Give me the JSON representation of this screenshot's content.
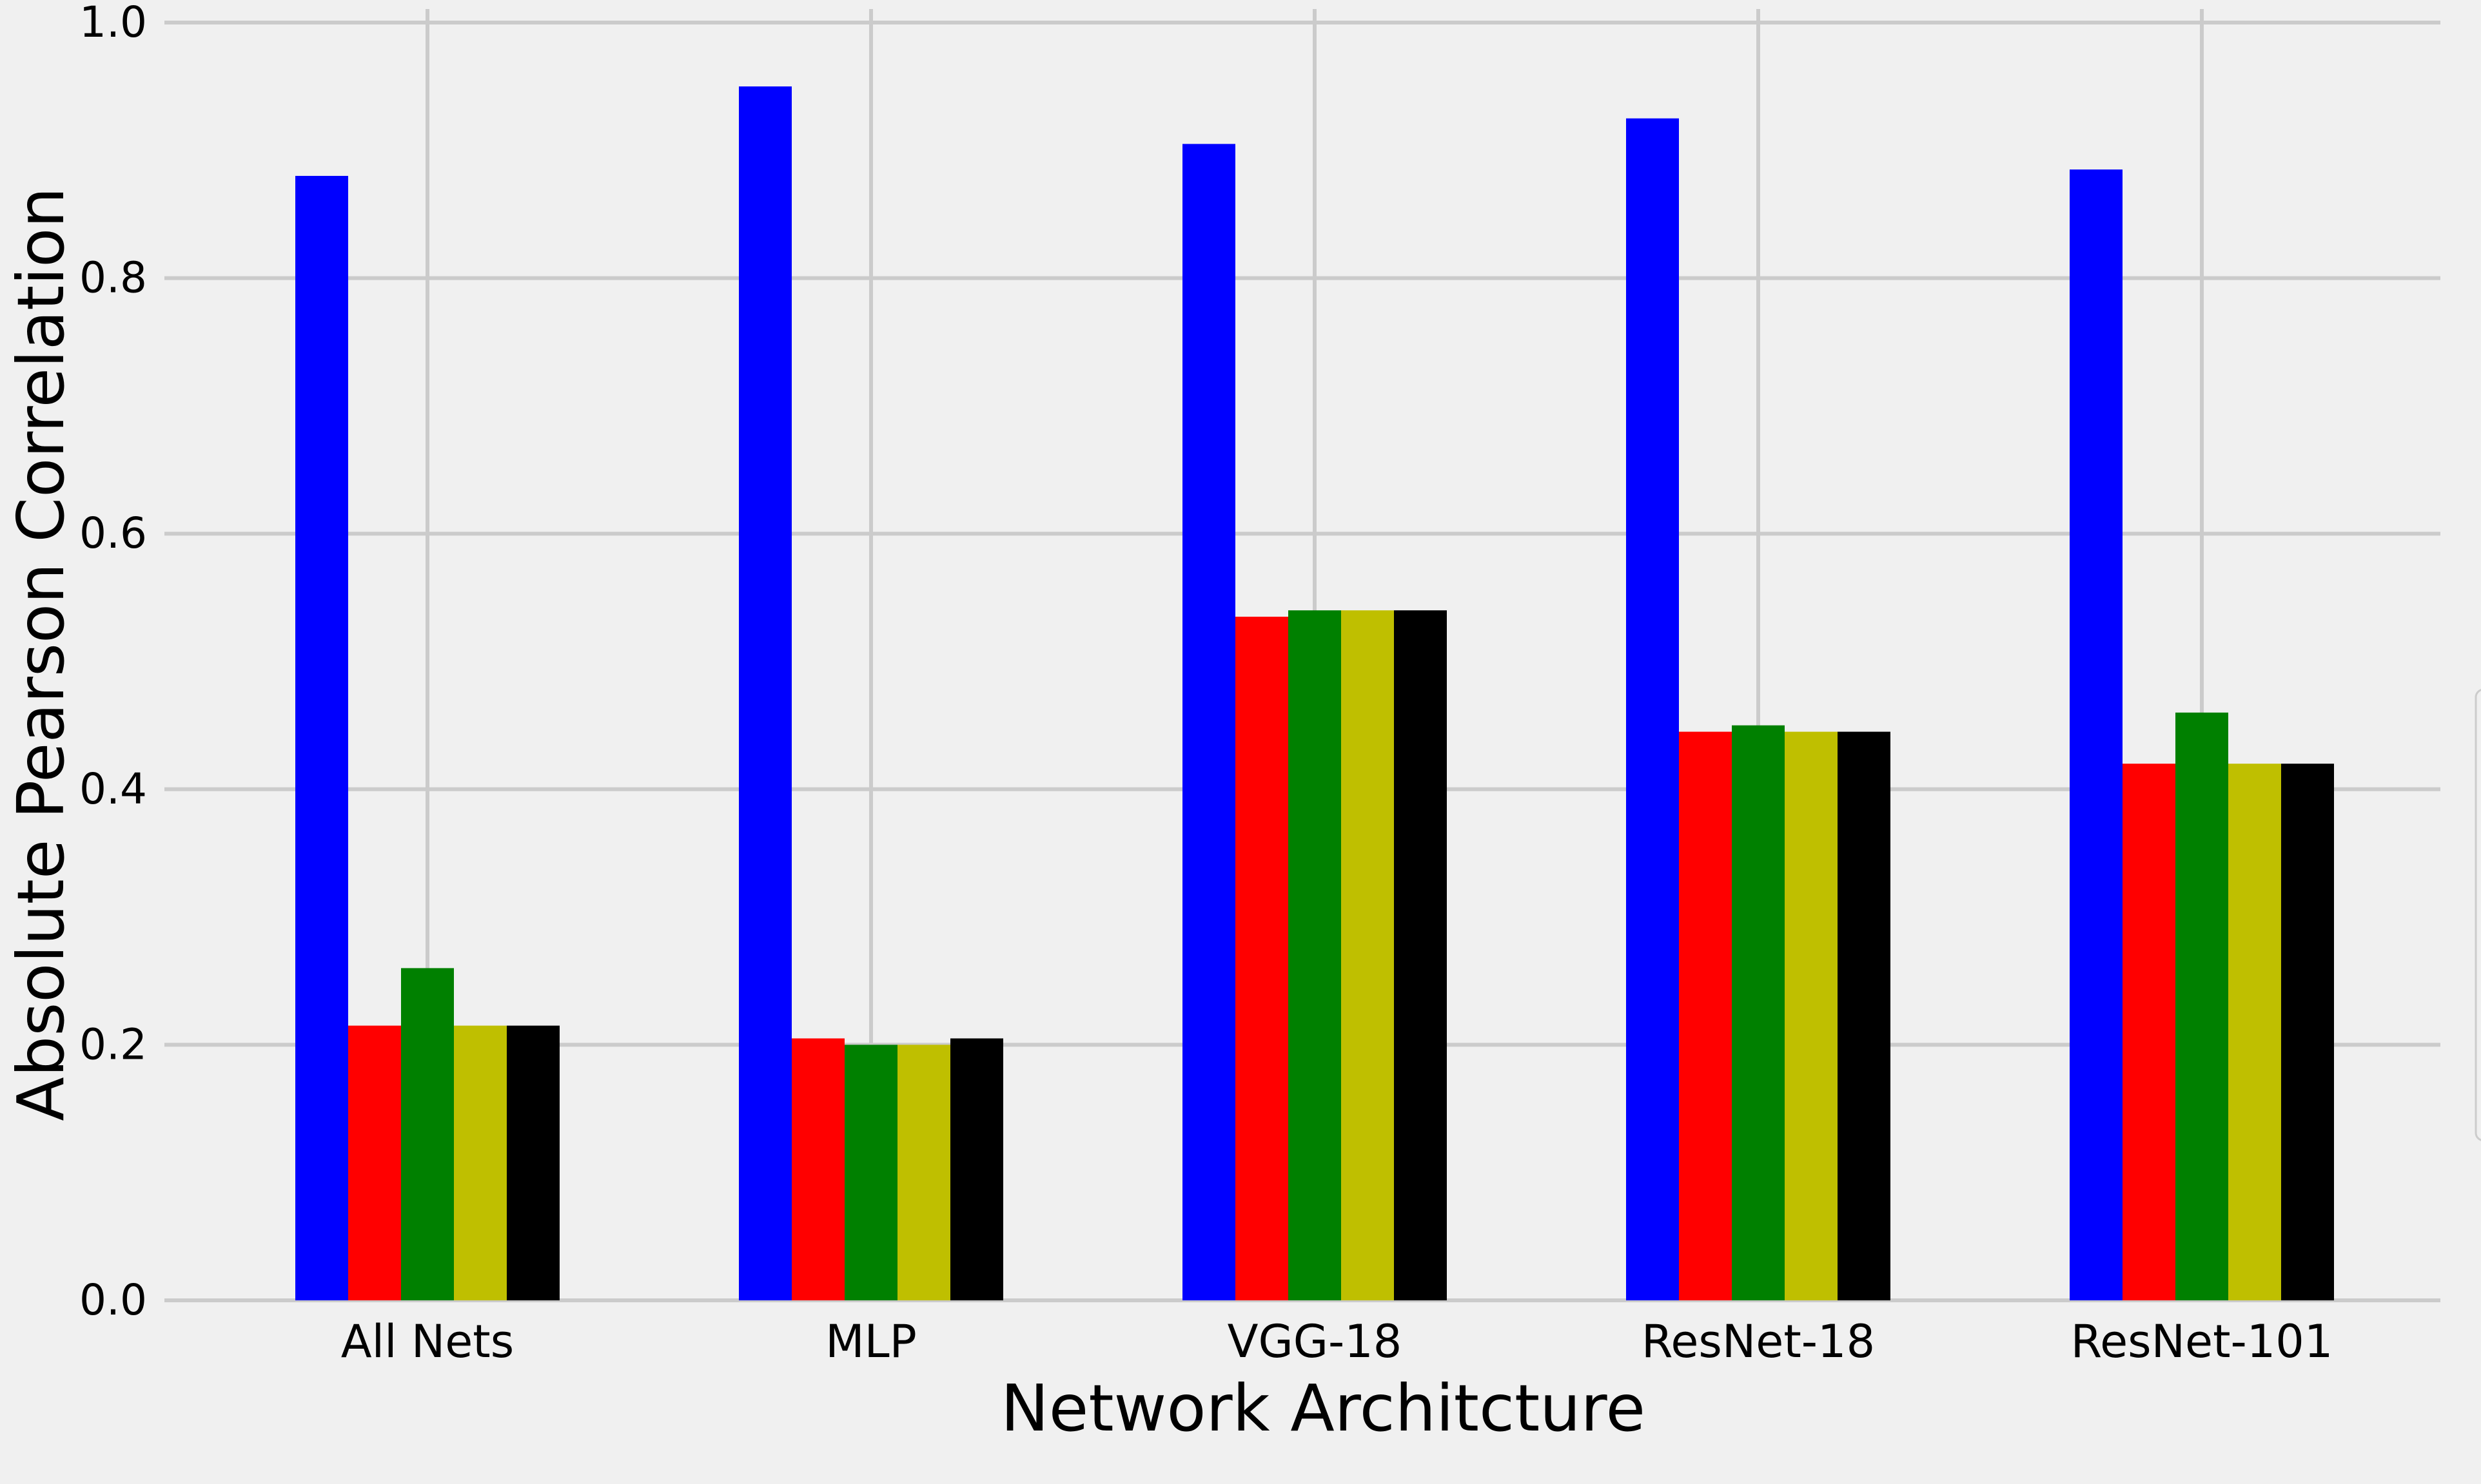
{
  "chart_data": {
    "type": "bar",
    "title": "",
    "xlabel": "Network Architcture",
    "ylabel": "Absolute Pearson Correlation",
    "categories": [
      "All Nets",
      "MLP",
      "VGG-18",
      "ResNet-18",
      "ResNet-101"
    ],
    "ylim": [
      0.0,
      1.0
    ],
    "yticks": [
      0.0,
      0.2,
      0.4,
      0.6,
      0.8,
      1.0
    ],
    "ytick_labels": [
      "0.0",
      "0.2",
      "0.4",
      "0.6",
      "0.8",
      "1.0"
    ],
    "grid": true,
    "legend": "right (mostly cropped)",
    "series": [
      {
        "color": "#0000ff",
        "values": [
          0.88,
          0.95,
          0.905,
          0.925,
          0.885
        ]
      },
      {
        "color": "#ff0000",
        "values": [
          0.215,
          0.205,
          0.535,
          0.445,
          0.42
        ]
      },
      {
        "color": "#008000",
        "values": [
          0.26,
          0.2,
          0.54,
          0.45,
          0.46
        ]
      },
      {
        "color": "#bfbf00",
        "values": [
          0.215,
          0.2,
          0.54,
          0.445,
          0.42
        ]
      },
      {
        "color": "#000000",
        "values": [
          0.215,
          0.205,
          0.54,
          0.445,
          0.42
        ]
      }
    ]
  }
}
